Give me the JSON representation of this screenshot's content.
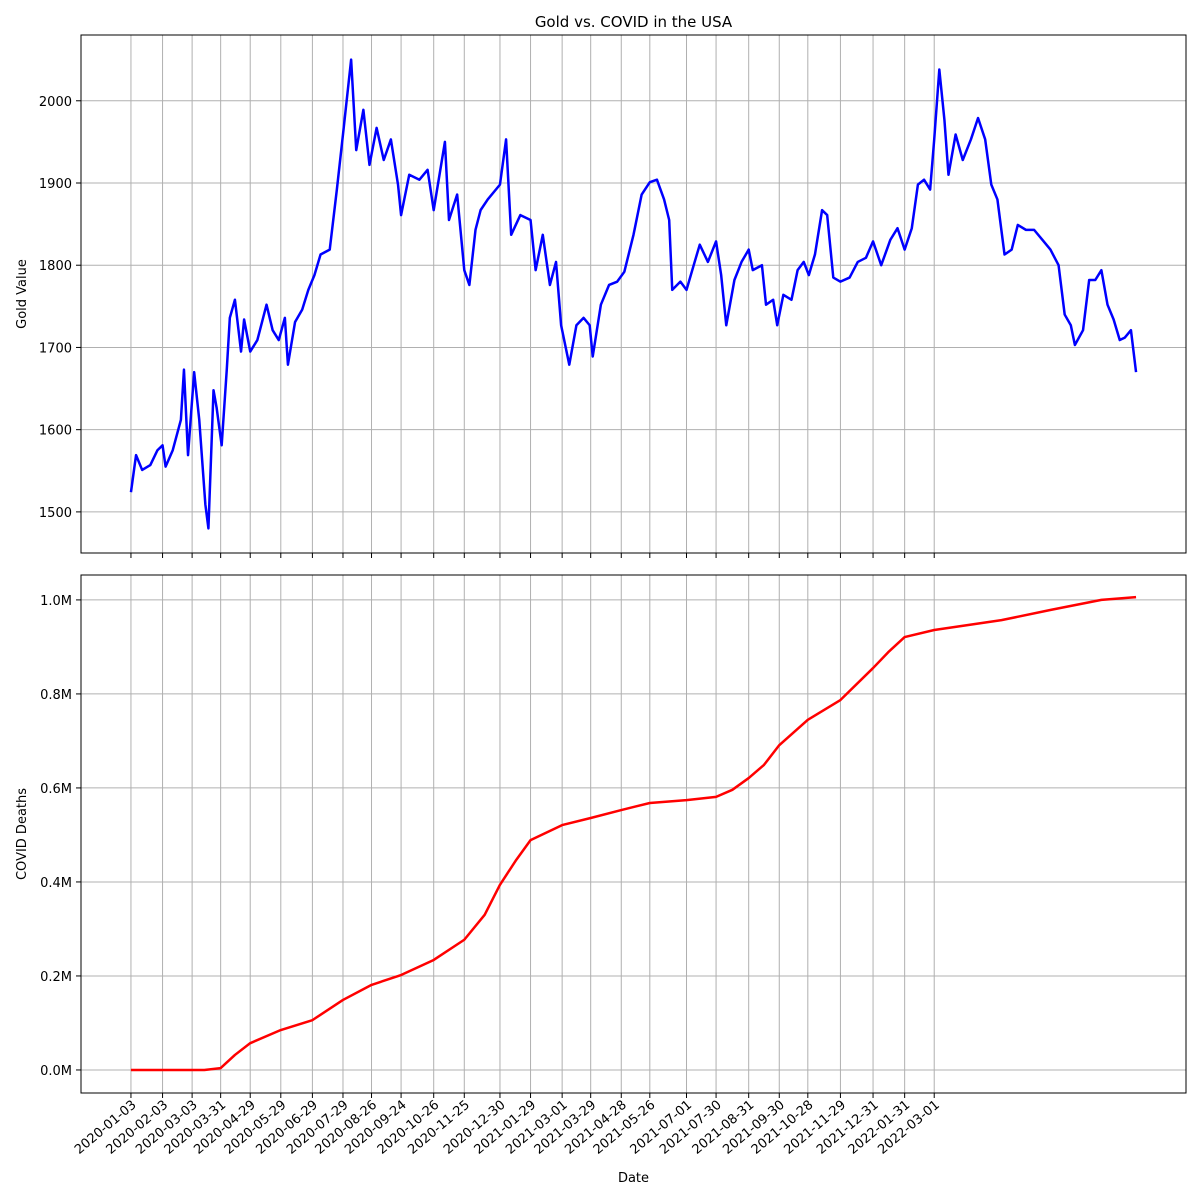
{
  "chart_data": [
    {
      "type": "line",
      "title": "Gold vs. COVID in the USA",
      "ylabel": "Gold Value",
      "color": "#0000ff",
      "grid": true,
      "xlim": [
        "2019-11-15",
        "2022-11-03"
      ],
      "ylim": [
        1450,
        2080
      ],
      "yticks": [
        1500,
        1600,
        1700,
        1800,
        1900,
        2000
      ],
      "x": [
        "2020-01-03",
        "2020-01-08",
        "2020-01-14",
        "2020-01-22",
        "2020-01-29",
        "2020-02-03",
        "2020-02-06",
        "2020-02-13",
        "2020-02-21",
        "2020-02-24",
        "2020-02-28",
        "2020-03-05",
        "2020-03-10",
        "2020-03-16",
        "2020-03-19",
        "2020-03-24",
        "2020-03-27",
        "2020-04-01",
        "2020-04-06",
        "2020-04-09",
        "2020-04-14",
        "2020-04-20",
        "2020-04-23",
        "2020-04-29",
        "2020-05-06",
        "2020-05-15",
        "2020-05-21",
        "2020-05-27",
        "2020-06-02",
        "2020-06-05",
        "2020-06-12",
        "2020-06-19",
        "2020-06-25",
        "2020-07-01",
        "2020-07-07",
        "2020-07-16",
        "2020-07-23",
        "2020-07-29",
        "2020-08-06",
        "2020-08-11",
        "2020-08-18",
        "2020-08-24",
        "2020-08-31",
        "2020-09-07",
        "2020-09-14",
        "2020-09-21",
        "2020-09-24",
        "2020-10-02",
        "2020-10-12",
        "2020-10-20",
        "2020-10-26",
        "2020-11-06",
        "2020-11-10",
        "2020-11-18",
        "2020-11-25",
        "2020-11-30",
        "2020-12-06",
        "2020-12-11",
        "2020-12-18",
        "2020-12-30",
        "2021-01-05",
        "2021-01-10",
        "2021-01-19",
        "2021-01-29",
        "2021-02-03",
        "2021-02-10",
        "2021-02-17",
        "2021-02-23",
        "2021-02-28",
        "2021-03-08",
        "2021-03-15",
        "2021-03-22",
        "2021-03-28",
        "2021-03-31",
        "2021-04-08",
        "2021-04-16",
        "2021-04-24",
        "2021-05-01",
        "2021-05-10",
        "2021-05-18",
        "2021-05-26",
        "2021-06-02",
        "2021-06-09",
        "2021-06-14",
        "2021-06-17",
        "2021-06-25",
        "2021-07-01",
        "2021-07-09",
        "2021-07-14",
        "2021-07-22",
        "2021-07-30",
        "2021-08-04",
        "2021-08-09",
        "2021-08-17",
        "2021-08-24",
        "2021-08-31",
        "2021-09-04",
        "2021-09-13",
        "2021-09-17",
        "2021-09-24",
        "2021-09-28",
        "2021-10-04",
        "2021-10-12",
        "2021-10-18",
        "2021-10-24",
        "2021-10-29",
        "2021-11-04",
        "2021-11-11",
        "2021-11-16",
        "2021-11-22",
        "2021-11-29",
        "2021-12-08",
        "2021-12-16",
        "2021-12-24",
        "2021-12-31",
        "2022-01-08",
        "2022-01-17",
        "2022-01-24",
        "2022-01-31",
        "2022-02-07",
        "2022-02-13",
        "2022-02-19",
        "2022-02-25",
        "2022-03-01",
        "2022-03-06",
        "2022-03-11",
        "2022-03-15",
        "2022-03-22",
        "2022-03-29",
        "2022-04-06",
        "2022-04-13",
        "2022-04-20",
        "2022-04-26",
        "2022-05-02",
        "2022-05-09",
        "2022-05-16",
        "2022-05-22",
        "2022-05-30",
        "2022-06-07",
        "2022-06-15",
        "2022-06-23",
        "2022-07-01",
        "2022-07-07",
        "2022-07-13",
        "2022-07-17",
        "2022-07-25",
        "2022-07-31",
        "2022-08-06",
        "2022-08-12",
        "2022-08-18",
        "2022-08-24",
        "2022-08-30",
        "2022-09-04",
        "2022-09-10",
        "2022-09-15"
      ],
      "values": [
        1524,
        1569,
        1551,
        1557,
        1575,
        1581,
        1555,
        1575,
        1612,
        1673,
        1569,
        1670,
        1612,
        1509,
        1480,
        1648,
        1627,
        1581,
        1673,
        1736,
        1758,
        1695,
        1734,
        1695,
        1709,
        1752,
        1721,
        1709,
        1736,
        1679,
        1731,
        1746,
        1770,
        1788,
        1813,
        1819,
        1892,
        1959,
        2050,
        1940,
        1989,
        1922,
        1967,
        1928,
        1953,
        1898,
        1861,
        1910,
        1904,
        1916,
        1867,
        1950,
        1855,
        1886,
        1794,
        1776,
        1843,
        1867,
        1880,
        1898,
        1953,
        1837,
        1861,
        1855,
        1794,
        1837,
        1776,
        1804,
        1727,
        1679,
        1727,
        1736,
        1727,
        1689,
        1752,
        1776,
        1780,
        1792,
        1837,
        1886,
        1901,
        1904,
        1880,
        1855,
        1770,
        1780,
        1770,
        1804,
        1825,
        1804,
        1829,
        1788,
        1727,
        1782,
        1804,
        1819,
        1794,
        1800,
        1752,
        1758,
        1727,
        1764,
        1758,
        1794,
        1804,
        1788,
        1813,
        1867,
        1861,
        1785,
        1780,
        1785,
        1804,
        1809,
        1829,
        1800,
        1831,
        1845,
        1819,
        1845,
        1898,
        1904,
        1892,
        1953,
        2038,
        1977,
        1910,
        1959,
        1928,
        1953,
        1979,
        1953,
        1898,
        1880,
        1813,
        1819,
        1849,
        1843,
        1843,
        1831,
        1819,
        1800,
        1740,
        1727,
        1703,
        1721,
        1782,
        1782,
        1794,
        1752,
        1734,
        1709,
        1712,
        1721,
        1670
      ]
    },
    {
      "type": "line",
      "xlabel": "Date",
      "ylabel": "COVID Deaths",
      "color": "#ff0000",
      "grid": true,
      "xlim": [
        "2019-11-15",
        "2022-11-03"
      ],
      "ylim": [
        -49000,
        1053000
      ],
      "yticks": [
        {
          "value": 0,
          "label": "0.0M"
        },
        {
          "value": 200000,
          "label": "0.2M"
        },
        {
          "value": 400000,
          "label": "0.4M"
        },
        {
          "value": 600000,
          "label": "0.6M"
        },
        {
          "value": 800000,
          "label": "0.8M"
        },
        {
          "value": 1000000,
          "label": "1.0M"
        }
      ],
      "xticks": [
        "2020-01-03",
        "2020-02-03",
        "2020-03-03",
        "2020-03-31",
        "2020-04-29",
        "2020-05-29",
        "2020-06-29",
        "2020-07-29",
        "2020-08-26",
        "2020-09-24",
        "2020-10-26",
        "2020-11-25",
        "2020-12-30",
        "2021-01-29",
        "2021-03-01",
        "2021-03-29",
        "2021-04-28",
        "2021-05-26",
        "2021-07-01",
        "2021-07-30",
        "2021-08-31",
        "2021-09-30",
        "2021-10-28",
        "2021-11-29",
        "2021-12-31",
        "2022-01-31",
        "2022-03-01"
      ],
      "x": [
        "2020-01-03",
        "2020-03-01",
        "2020-03-15",
        "2020-03-31",
        "2020-04-14",
        "2020-04-29",
        "2020-05-29",
        "2020-06-29",
        "2020-07-29",
        "2020-08-26",
        "2020-09-24",
        "2020-10-26",
        "2020-11-25",
        "2020-12-15",
        "2020-12-30",
        "2021-01-15",
        "2021-01-29",
        "2021-03-01",
        "2021-03-29",
        "2021-04-28",
        "2021-05-26",
        "2021-07-01",
        "2021-07-30",
        "2021-08-15",
        "2021-08-31",
        "2021-09-15",
        "2021-09-30",
        "2021-10-28",
        "2021-11-29",
        "2021-12-31",
        "2022-01-15",
        "2022-01-31",
        "2022-03-01",
        "2022-05-06",
        "2022-06-24",
        "2022-08-12",
        "2022-09-15"
      ],
      "values": [
        0,
        0,
        0,
        4000,
        32000,
        57000,
        85000,
        106000,
        149000,
        181000,
        202000,
        234000,
        277000,
        330000,
        394000,
        447000,
        489000,
        521000,
        536000,
        553000,
        568000,
        574000,
        581000,
        596000,
        621000,
        649000,
        691000,
        745000,
        787000,
        855000,
        889000,
        921000,
        936000,
        957000,
        979000,
        1000000,
        1006000
      ]
    }
  ]
}
